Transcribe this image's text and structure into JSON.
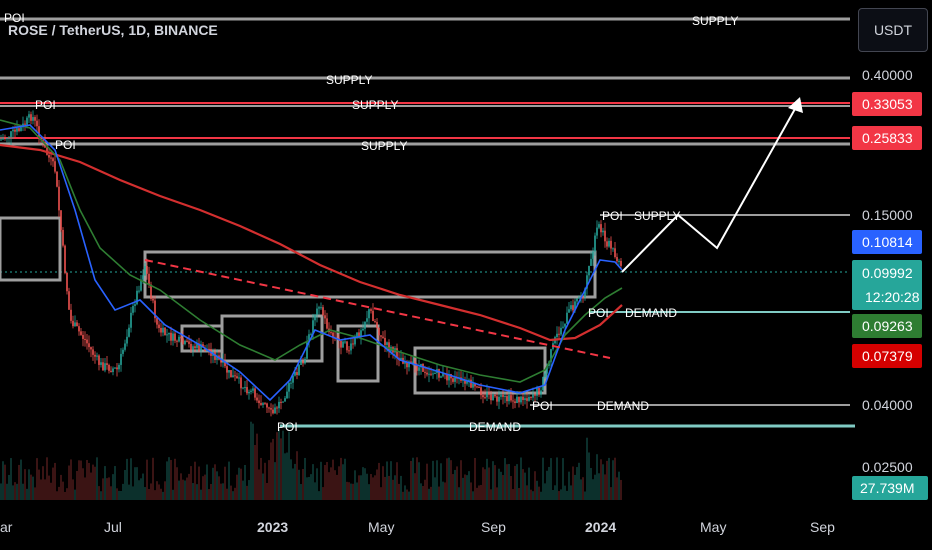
{
  "header": {
    "symbol_title": "ROSE / TetherUS, 1D, BINANCE",
    "currency_button": "USDT"
  },
  "colors": {
    "background": "#000000",
    "up_candle": "#26a69a",
    "down_candle": "#ef5350",
    "ma_fast": "#2962ff",
    "ma_mid": "#2e7d32",
    "ma_slow": "#d32f2f",
    "zone_gray": "#9e9e9e",
    "zone_red": "#f23645",
    "zone_teal": "#80cbc4"
  },
  "chart_data": {
    "type": "candlestick",
    "x_axis": {
      "tick_labels": [
        "ar",
        "Jul",
        "2023",
        "May",
        "Sep",
        "2024",
        "May",
        "Sep"
      ],
      "bold_ticks": [
        "2023",
        "2024"
      ]
    },
    "y_axis": {
      "scale": "log",
      "tick_labels": [
        "0.40000",
        "0.15000",
        "0.04000",
        "0.02500"
      ],
      "tick_values": [
        0.4,
        0.15,
        0.04,
        0.025
      ]
    },
    "price_badges": [
      {
        "label": "0.33053",
        "color": "#f23645",
        "value": 0.33053
      },
      {
        "label": "0.25833",
        "color": "#f23645",
        "value": 0.25833
      },
      {
        "label": "0.10814",
        "color": "#2962ff",
        "value": 0.10814
      },
      {
        "label": "0.09992",
        "sublabel": "12:20:28",
        "color": "#26a69a",
        "value": 0.09992
      },
      {
        "label": "0.09263",
        "color": "#2e7d32",
        "value": 0.09263
      },
      {
        "label": "0.07379",
        "color": "#d50000",
        "value": 0.07379
      }
    ],
    "volume_badge": {
      "label": "27.739M",
      "color": "#26a69a"
    },
    "zones": [
      {
        "label": "SUPPLY",
        "type": "supply",
        "value": 0.55
      },
      {
        "label": "SUPPLY",
        "type": "supply",
        "value": 0.4
      },
      {
        "label": "SUPPLY",
        "type": "supply",
        "value": 0.33053
      },
      {
        "label": "SUPPLY",
        "type": "supply",
        "value": 0.25833
      },
      {
        "label": "SUPPLY",
        "type": "supply",
        "value": 0.15
      },
      {
        "label": "DEMAND",
        "type": "demand",
        "value": 0.0745
      },
      {
        "label": "DEMAND",
        "type": "demand",
        "value": 0.04
      },
      {
        "label": "DEMAND",
        "type": "demand",
        "value": 0.0345
      }
    ],
    "poi_labels": [
      "POI",
      "POI",
      "POI",
      "POI",
      "POI",
      "POI",
      "POI"
    ],
    "projection_path": [
      0.0999,
      0.15,
      0.12,
      0.33
    ]
  }
}
